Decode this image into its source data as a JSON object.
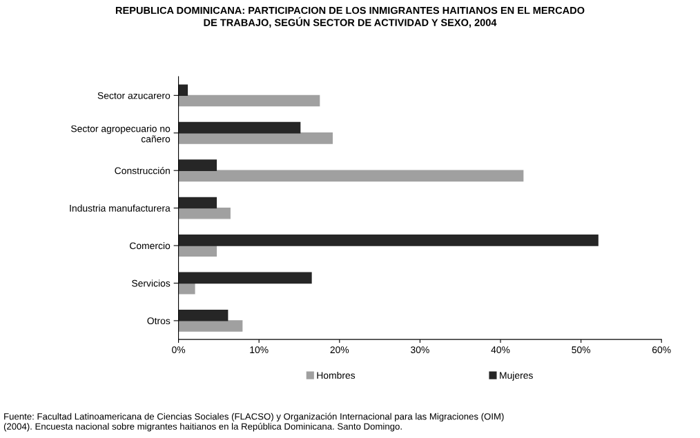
{
  "chart_data": {
    "type": "bar",
    "orientation": "horizontal",
    "title": "REPUBLICA DOMINICANA: PARTICIPACION DE LOS INMIGRANTES HAITIANOS EN EL MERCADO\nDE TRABAJO, SEGÚN SECTOR DE ACTIVIDAD Y SEXO, 2004",
    "categories": [
      "Sector azucarero",
      "Sector agropecuario no\ncañero",
      "Construcción",
      "Industria manufacturera",
      "Comercio",
      "Servicios",
      "Otros"
    ],
    "series": [
      {
        "name": "Hombres",
        "color": "#a0a0a0",
        "values": [
          17.5,
          19.1,
          42.8,
          6.4,
          4.7,
          2.0,
          7.9
        ]
      },
      {
        "name": "Mujeres",
        "color": "#262626",
        "values": [
          1.1,
          15.1,
          4.7,
          4.7,
          52.1,
          16.5,
          6.1
        ]
      }
    ],
    "xlim": [
      0,
      60
    ],
    "xticks": [
      {
        "value": 0,
        "label": "0%"
      },
      {
        "value": 10,
        "label": "10%"
      },
      {
        "value": 20,
        "label": "20%"
      },
      {
        "value": 30,
        "label": "30%"
      },
      {
        "value": 40,
        "label": "40%"
      },
      {
        "value": 50,
        "label": "50%"
      },
      {
        "value": 60,
        "label": "60%"
      }
    ],
    "grid": false,
    "legend": "bottom",
    "annotations": [
      "Fuente: Facultad Latinoamericana de Ciencias Sociales (FLACSO) y Organización Internacional para las Migraciones (OIM)\n(2004). Encuesta nacional sobre migrantes haitianos en la República Dominicana. Santo Domingo."
    ]
  }
}
